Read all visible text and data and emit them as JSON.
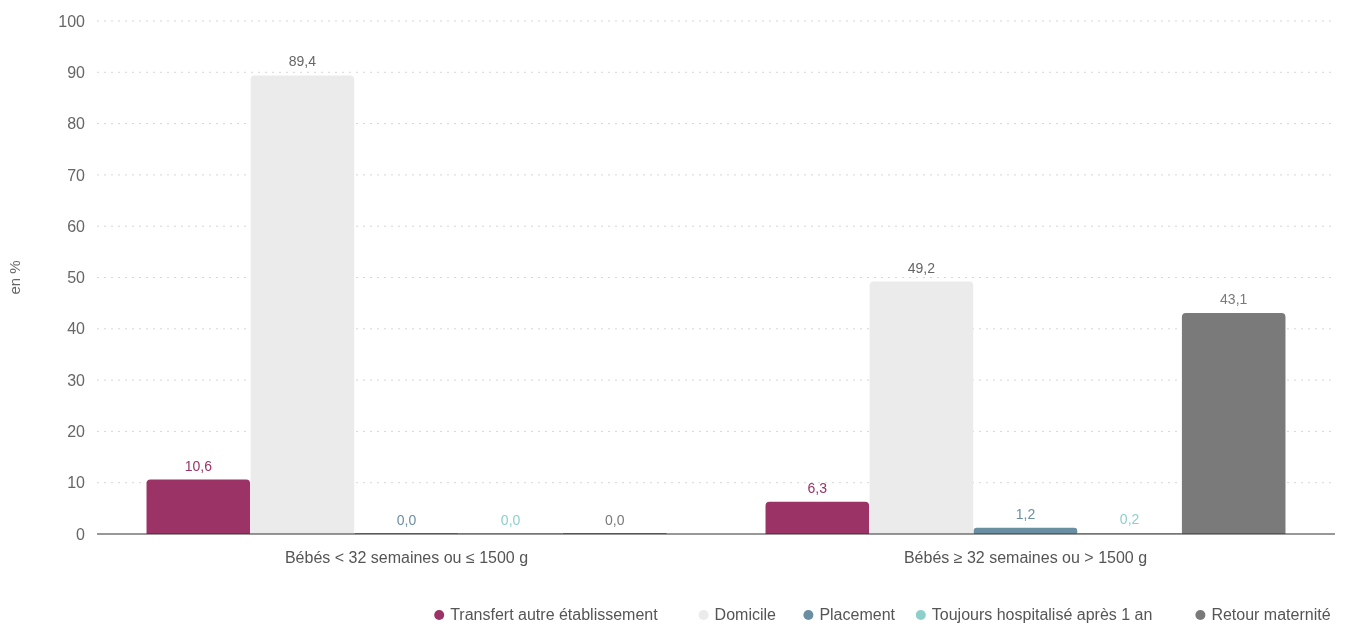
{
  "chart_data": {
    "type": "bar",
    "ylabel": "en %",
    "categories": [
      "Bébés < 32 semaines ou ≤ 1500 g",
      "Bébés ≥ 32 semaines ou > 1500 g"
    ],
    "series": [
      {
        "name": "Transfert autre établissement",
        "color": "#9b3366",
        "values": [
          10.6,
          6.3
        ],
        "value_labels": [
          "10,6",
          "6,3"
        ]
      },
      {
        "name": "Domicile",
        "color": "#ebebeb",
        "values": [
          89.4,
          49.2
        ],
        "value_labels": [
          "89,4",
          "49,2"
        ]
      },
      {
        "name": "Placement",
        "color": "#6a8fa3",
        "values": [
          0.0,
          1.2
        ],
        "value_labels": [
          "0,0",
          "1,2"
        ]
      },
      {
        "name": "Toujours hospitalisé après 1 an",
        "color": "#8ecfcb",
        "values": [
          0.0,
          0.2
        ],
        "value_labels": [
          "0,0",
          "0,2"
        ]
      },
      {
        "name": "Retour maternité",
        "color": "#7a7a7a",
        "values": [
          0.0,
          43.1
        ],
        "value_labels": [
          "0,0",
          "43,1"
        ]
      }
    ],
    "ylim": [
      0,
      100
    ],
    "yticks": [
      0,
      10,
      20,
      30,
      40,
      50,
      60,
      70,
      80,
      90,
      100
    ],
    "grid": "y",
    "legend": "bottom right"
  }
}
